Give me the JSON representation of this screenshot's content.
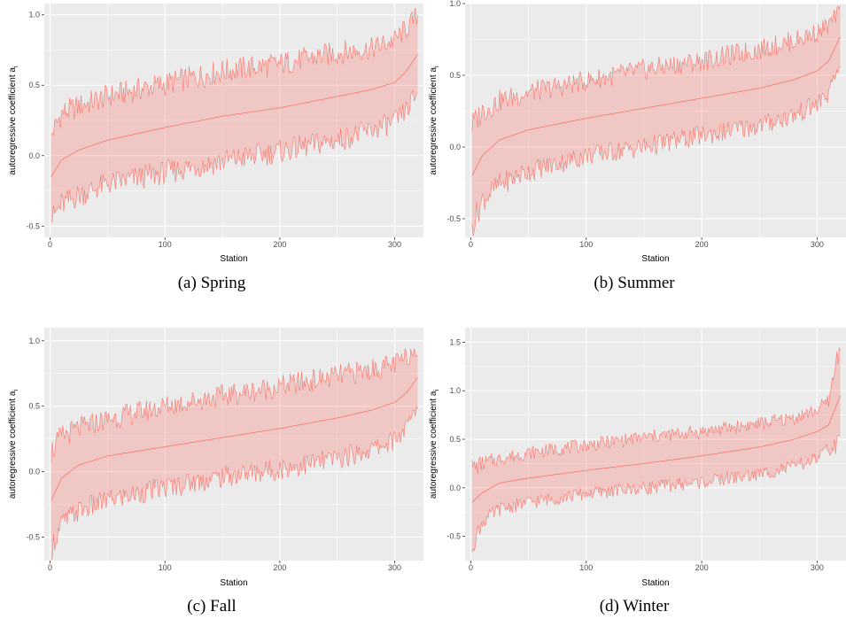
{
  "figure": {
    "panels": [
      {
        "id": "a",
        "label": "(a)",
        "caption": "Spring"
      },
      {
        "id": "b",
        "label": "(b)",
        "caption": "Summer"
      },
      {
        "id": "c",
        "label": "(c)",
        "caption": "Fall"
      },
      {
        "id": "d",
        "label": "(d)",
        "caption": "Winter"
      }
    ]
  },
  "colors": {
    "panel_background": "#ebebeb",
    "grid": "#ffffff",
    "line": "#f8766d",
    "ribbon_fill": "#f8766d",
    "ribbon_opacity": 0.3,
    "tick_text": "#4d4d4d"
  },
  "chart_data": [
    {
      "id": "a",
      "type": "area",
      "xlabel": "Station",
      "ylabel": "autoregressive coefficient a",
      "ylabel_subscript": "i",
      "xlim": [
        -5,
        325
      ],
      "ylim": [
        -0.58,
        1.08
      ],
      "xticks": [
        0,
        100,
        200,
        300
      ],
      "yticks": [
        -0.5,
        0.0,
        0.5,
        1.0
      ],
      "ytick_labels": [
        "-0.5",
        "0.0",
        "0.5",
        "1.0"
      ],
      "n_stations": 320,
      "series": [
        {
          "role": "median",
          "x": [
            1,
            10,
            25,
            50,
            100,
            150,
            200,
            250,
            280,
            300,
            310,
            320
          ],
          "y": [
            -0.15,
            -0.03,
            0.04,
            0.11,
            0.2,
            0.28,
            0.34,
            0.42,
            0.47,
            0.52,
            0.6,
            0.72
          ]
        },
        {
          "role": "upper",
          "x": [
            1,
            10,
            25,
            50,
            100,
            150,
            200,
            250,
            280,
            300,
            310,
            320
          ],
          "y": [
            0.15,
            0.3,
            0.35,
            0.42,
            0.51,
            0.6,
            0.65,
            0.73,
            0.76,
            0.82,
            0.9,
            1.0
          ]
        },
        {
          "role": "lower",
          "x": [
            1,
            10,
            25,
            50,
            100,
            150,
            200,
            250,
            280,
            300,
            310,
            320
          ],
          "y": [
            -0.45,
            -0.35,
            -0.28,
            -0.2,
            -0.12,
            -0.04,
            0.03,
            0.11,
            0.18,
            0.24,
            0.32,
            0.45
          ]
        }
      ]
    },
    {
      "id": "b",
      "type": "area",
      "xlabel": "Station",
      "ylabel": "autoregressive coefficient a",
      "ylabel_subscript": "i",
      "xlim": [
        -5,
        325
      ],
      "ylim": [
        -0.63,
        1.0
      ],
      "xticks": [
        0,
        100,
        200,
        300
      ],
      "yticks": [
        -0.5,
        0.0,
        0.5,
        1.0
      ],
      "ytick_labels": [
        "-0.5",
        "0.0",
        "0.5",
        "1.0"
      ],
      "n_stations": 320,
      "series": [
        {
          "role": "median",
          "x": [
            1,
            10,
            25,
            50,
            100,
            150,
            200,
            250,
            280,
            300,
            310,
            320
          ],
          "y": [
            -0.2,
            -0.06,
            0.05,
            0.12,
            0.2,
            0.27,
            0.34,
            0.41,
            0.47,
            0.53,
            0.6,
            0.77
          ]
        },
        {
          "role": "upper",
          "x": [
            1,
            10,
            25,
            50,
            100,
            150,
            200,
            250,
            280,
            300,
            310,
            320
          ],
          "y": [
            0.15,
            0.25,
            0.32,
            0.38,
            0.46,
            0.54,
            0.6,
            0.68,
            0.74,
            0.8,
            0.85,
            0.95
          ]
        },
        {
          "role": "lower",
          "x": [
            1,
            10,
            25,
            50,
            100,
            150,
            200,
            250,
            280,
            300,
            310,
            320
          ],
          "y": [
            -0.55,
            -0.37,
            -0.26,
            -0.17,
            -0.06,
            0.0,
            0.08,
            0.15,
            0.22,
            0.3,
            0.37,
            0.58
          ]
        }
      ]
    },
    {
      "id": "c",
      "type": "area",
      "xlabel": "Station",
      "ylabel": "autoregressive coefficient a",
      "ylabel_subscript": "i",
      "xlim": [
        -5,
        325
      ],
      "ylim": [
        -0.68,
        1.1
      ],
      "xticks": [
        0,
        100,
        200,
        300
      ],
      "yticks": [
        -0.5,
        0.0,
        0.5,
        1.0
      ],
      "ytick_labels": [
        "-0.5",
        "0.0",
        "0.5",
        "1.0"
      ],
      "n_stations": 320,
      "series": [
        {
          "role": "median",
          "x": [
            1,
            10,
            25,
            50,
            100,
            150,
            200,
            250,
            280,
            300,
            310,
            320
          ],
          "y": [
            -0.22,
            -0.05,
            0.05,
            0.12,
            0.19,
            0.26,
            0.33,
            0.41,
            0.47,
            0.53,
            0.6,
            0.72
          ]
        },
        {
          "role": "upper",
          "x": [
            1,
            10,
            25,
            50,
            100,
            150,
            200,
            250,
            280,
            300,
            310,
            320
          ],
          "y": [
            0.15,
            0.27,
            0.33,
            0.4,
            0.5,
            0.58,
            0.65,
            0.73,
            0.78,
            0.82,
            0.87,
            0.95
          ]
        },
        {
          "role": "lower",
          "x": [
            1,
            10,
            25,
            50,
            100,
            150,
            200,
            250,
            280,
            300,
            310,
            320
          ],
          "y": [
            -0.58,
            -0.4,
            -0.3,
            -0.22,
            -0.12,
            -0.04,
            0.02,
            0.1,
            0.17,
            0.24,
            0.33,
            0.5
          ]
        }
      ]
    },
    {
      "id": "d",
      "type": "area",
      "xlabel": "Station",
      "ylabel": "autoregressive coefficient a",
      "ylabel_subscript": "i",
      "xlim": [
        -5,
        325
      ],
      "ylim": [
        -0.75,
        1.65
      ],
      "xticks": [
        0,
        100,
        200,
        300
      ],
      "yticks": [
        -0.5,
        0.0,
        0.5,
        1.0,
        1.5
      ],
      "ytick_labels": [
        "-0.5",
        "0.0",
        "0.5",
        "1.0",
        "1.5"
      ],
      "n_stations": 320,
      "series": [
        {
          "role": "median",
          "x": [
            1,
            10,
            25,
            50,
            100,
            150,
            200,
            250,
            280,
            300,
            310,
            320
          ],
          "y": [
            -0.15,
            -0.05,
            0.05,
            0.1,
            0.18,
            0.25,
            0.33,
            0.42,
            0.5,
            0.58,
            0.65,
            0.95
          ]
        },
        {
          "role": "upper",
          "x": [
            1,
            10,
            25,
            50,
            100,
            150,
            200,
            250,
            280,
            300,
            310,
            320
          ],
          "y": [
            0.2,
            0.25,
            0.3,
            0.36,
            0.44,
            0.52,
            0.58,
            0.66,
            0.72,
            0.8,
            0.9,
            1.5
          ]
        },
        {
          "role": "lower",
          "x": [
            1,
            10,
            25,
            50,
            100,
            150,
            200,
            250,
            280,
            300,
            310,
            320
          ],
          "y": [
            -0.6,
            -0.35,
            -0.22,
            -0.15,
            -0.06,
            0.0,
            0.06,
            0.14,
            0.22,
            0.3,
            0.4,
            0.45
          ]
        }
      ]
    }
  ]
}
